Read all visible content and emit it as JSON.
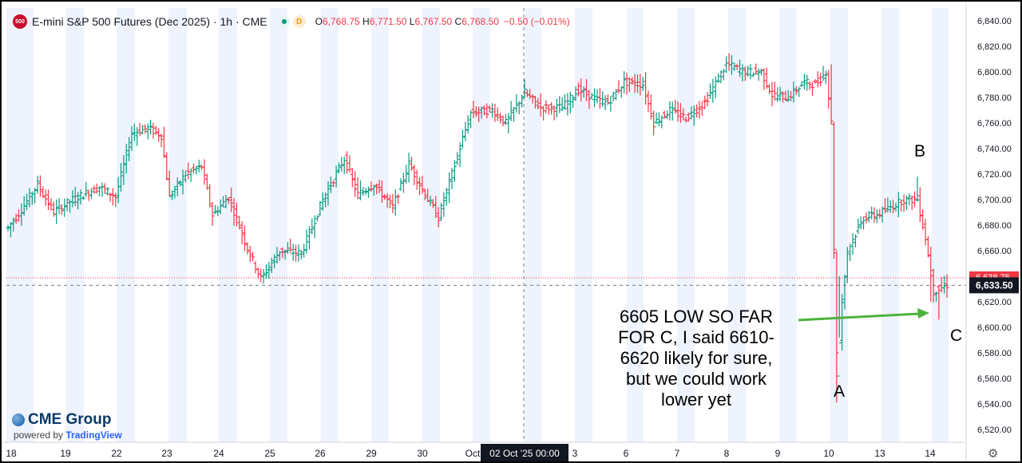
{
  "header": {
    "symbol_badge": "500",
    "title": "E-mini S&P 500 Futures (Dec 2025) · 1h · CME",
    "ohlc": [
      {
        "k": "O",
        "v": "6,768.75"
      },
      {
        "k": "H",
        "v": "6,771.50"
      },
      {
        "k": "L",
        "v": "6,767.50"
      },
      {
        "k": "C",
        "v": "6,768.50"
      }
    ],
    "change": "−0.50 (−0.01%)",
    "d_badge": "D"
  },
  "logo": {
    "main": "CME Group",
    "sub_prefix": "powered by",
    "sub_brand": "TradingView"
  },
  "annotation": {
    "text": "6605 LOW SO FAR\nFOR C, I said 6610-\n6620 likely for sure,\nbut we could work\nlower yet",
    "wave_a": "A",
    "wave_b": "B",
    "wave_c": "C"
  },
  "chart_data": {
    "type": "ohlc",
    "colors": {
      "up": "#089981",
      "down": "#f23645",
      "session_band": "#eef3fd"
    },
    "ylim": [
      6510,
      6850
    ],
    "y_ticks": [
      {
        "v": 6840,
        "label": "6,840.00"
      },
      {
        "v": 6820,
        "label": "6,820.00"
      },
      {
        "v": 6800,
        "label": "6,800.00"
      },
      {
        "v": 6780,
        "label": "6,780.00"
      },
      {
        "v": 6760,
        "label": "6,760.00"
      },
      {
        "v": 6740,
        "label": "6,740.00"
      },
      {
        "v": 6720,
        "label": "6,720.00"
      },
      {
        "v": 6700,
        "label": "6,700.00"
      },
      {
        "v": 6680,
        "label": "6,680.00"
      },
      {
        "v": 6660,
        "label": "6,660.00"
      },
      {
        "v": 6640,
        "label": "6,640.00"
      },
      {
        "v": 6620,
        "label": "6,620.00"
      },
      {
        "v": 6600,
        "label": "6,600.00"
      },
      {
        "v": 6580,
        "label": "6,580.00"
      },
      {
        "v": 6560,
        "label": "6,560.00"
      },
      {
        "v": 6540,
        "label": "6,540.00"
      },
      {
        "v": 6520,
        "label": "6,520.00"
      }
    ],
    "x_labels": [
      "18",
      "19",
      "22",
      "23",
      "24",
      "25",
      "26",
      "29",
      "30",
      "Oct",
      "3",
      "6",
      "7",
      "8",
      "9",
      "10",
      "13",
      "14"
    ],
    "crosshair_x_label": "02 Oct '25   00:00",
    "last_price": {
      "value": 6633.5,
      "label": "6,633.50"
    },
    "prev_price": {
      "value": 6638.75,
      "label": "6,638.75"
    },
    "keypoints": [
      [
        0,
        6678
      ],
      [
        5,
        6692
      ],
      [
        11,
        6712
      ],
      [
        17,
        6690
      ],
      [
        24,
        6700
      ],
      [
        34,
        6710
      ],
      [
        40,
        6702
      ],
      [
        46,
        6752
      ],
      [
        52,
        6756
      ],
      [
        57,
        6750
      ],
      [
        60,
        6702
      ],
      [
        66,
        6720
      ],
      [
        72,
        6726
      ],
      [
        76,
        6688
      ],
      [
        82,
        6702
      ],
      [
        89,
        6662
      ],
      [
        94,
        6638
      ],
      [
        101,
        6660
      ],
      [
        109,
        6658
      ],
      [
        117,
        6700
      ],
      [
        125,
        6732
      ],
      [
        130,
        6704
      ],
      [
        136,
        6712
      ],
      [
        143,
        6694
      ],
      [
        149,
        6728
      ],
      [
        155,
        6704
      ],
      [
        160,
        6686
      ],
      [
        165,
        6720
      ],
      [
        172,
        6768
      ],
      [
        180,
        6770
      ],
      [
        185,
        6760
      ],
      [
        192,
        6784
      ],
      [
        198,
        6772
      ],
      [
        206,
        6772
      ],
      [
        212,
        6786
      ],
      [
        219,
        6778
      ],
      [
        223,
        6776
      ],
      [
        229,
        6792
      ],
      [
        236,
        6790
      ],
      [
        240,
        6760
      ],
      [
        246,
        6770
      ],
      [
        252,
        6764
      ],
      [
        259,
        6776
      ],
      [
        267,
        6806
      ],
      [
        274,
        6800
      ],
      [
        280,
        6800
      ],
      [
        284,
        6782
      ],
      [
        290,
        6780
      ],
      [
        296,
        6792
      ],
      [
        300,
        6790
      ],
      [
        304,
        6800
      ],
      [
        306,
        6760
      ],
      [
        308,
        6560
      ],
      [
        310,
        6620
      ],
      [
        312,
        6660
      ],
      [
        318,
        6686
      ],
      [
        323,
        6688
      ],
      [
        328,
        6694
      ],
      [
        333,
        6700
      ],
      [
        338,
        6700
      ],
      [
        341,
        6670
      ],
      [
        344,
        6628
      ],
      [
        349,
        6633
      ]
    ]
  }
}
